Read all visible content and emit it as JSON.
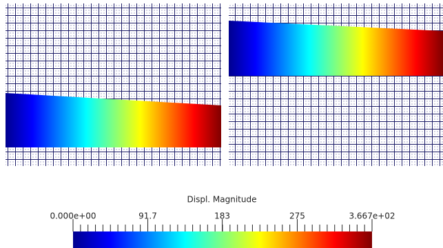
{
  "colorbar": {
    "title": "Displ. Magnitude",
    "range": [
      0,
      366.7
    ],
    "ticks": [
      {
        "value": 0,
        "label": "0.000e+00"
      },
      91.7,
      183,
      275,
      {
        "value": 366.7,
        "label": "3.667e+02"
      }
    ]
  }
}
